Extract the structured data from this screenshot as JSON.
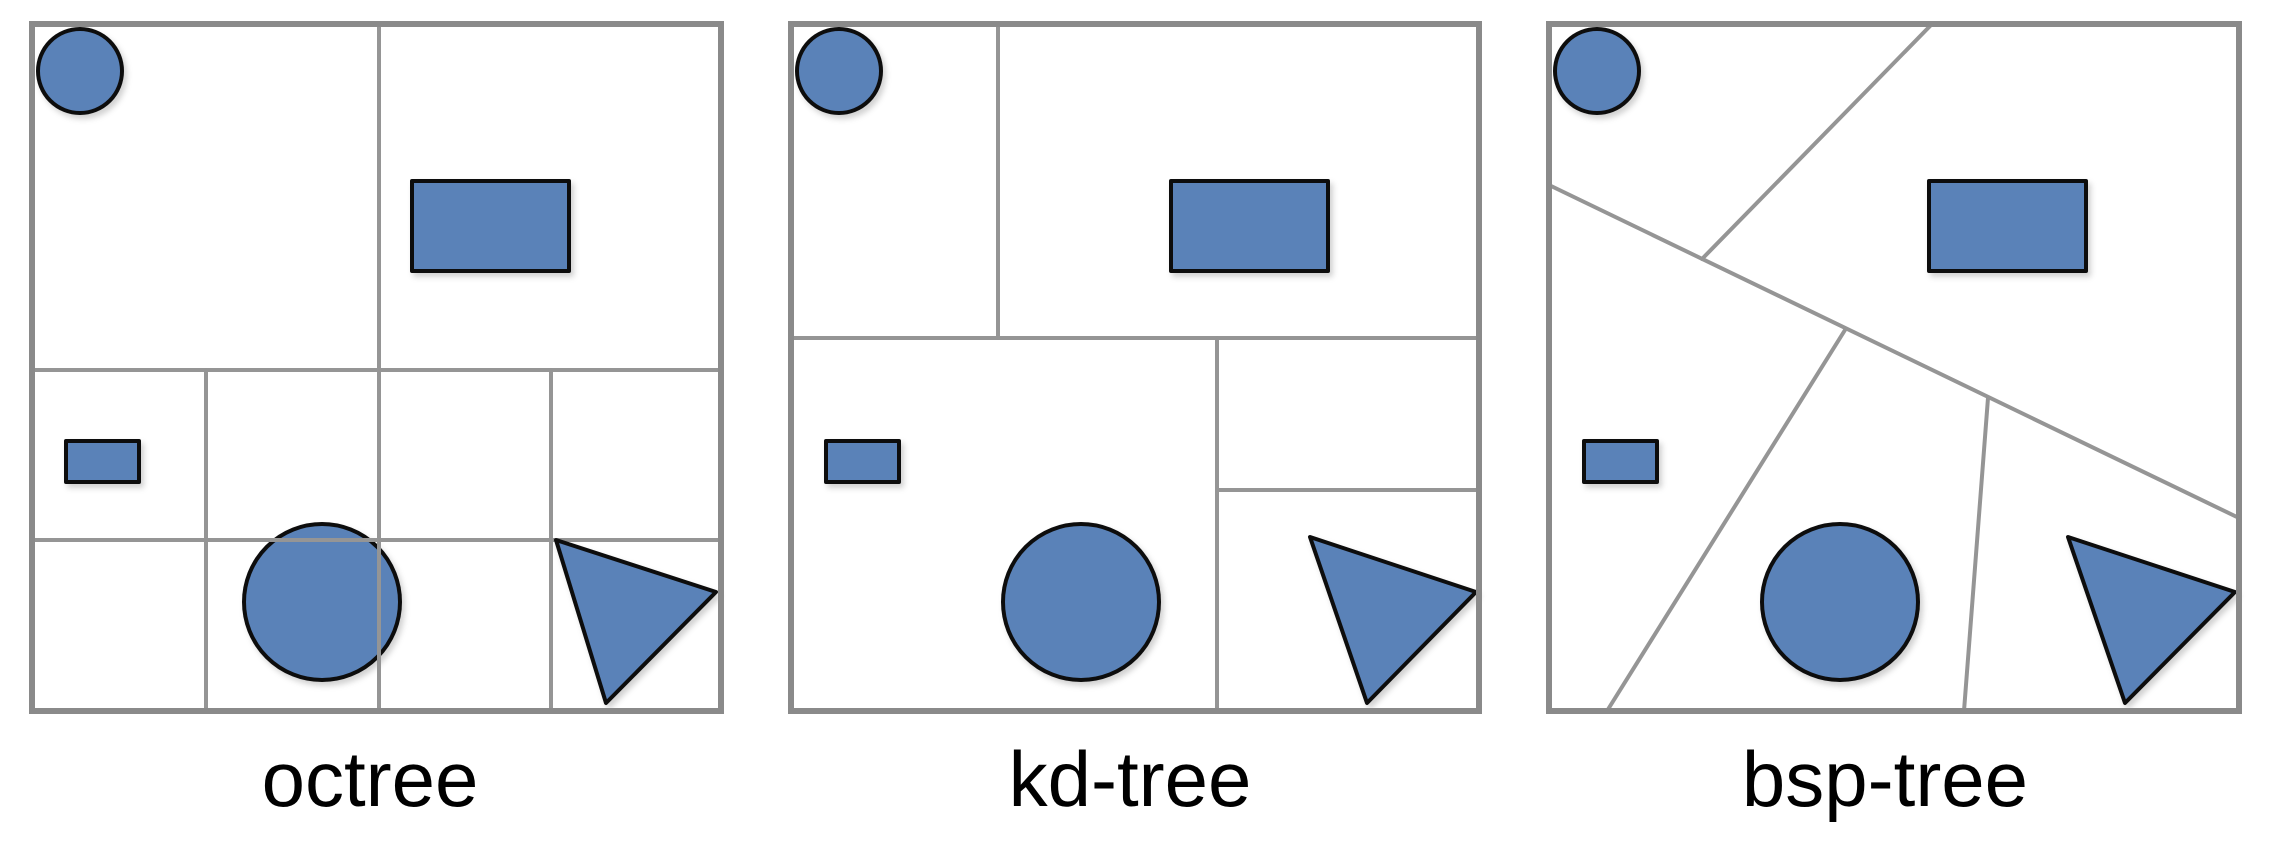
{
  "colors": {
    "shape_fill": "#5a82b8",
    "shape_stroke": "#101010",
    "frame_stroke": "#8a8a8a",
    "split_stroke": "#959595"
  },
  "panels": [
    {
      "caption": "octree"
    },
    {
      "caption": "kd-tree"
    },
    {
      "caption": "bsp-tree"
    }
  ]
}
